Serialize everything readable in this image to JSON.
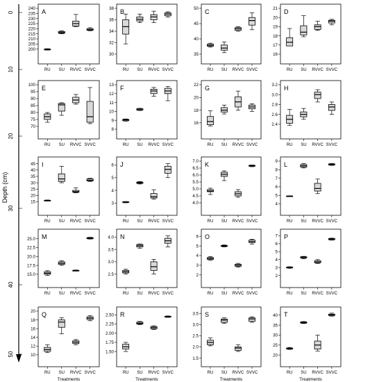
{
  "chart_data": {
    "type": "box",
    "ylabel": "Depth (cm)",
    "depth_axis": {
      "ticks": [
        "0",
        "10",
        "20",
        "30",
        "40",
        "50"
      ]
    },
    "xlabel": "Treatments",
    "categories": [
      "RU",
      "SU",
      "RVVC",
      "SVVC"
    ],
    "box_color": "#d9d9d9",
    "panels": [
      {
        "label": "A",
        "ylim": [
          195,
          240
        ],
        "yticks": [
          "200",
          "205",
          "210",
          "215",
          "220",
          "225",
          "230",
          "235",
          "240"
        ],
        "boxes": [
          {
            "min": 199,
            "q1": 199.2,
            "median": 199.5,
            "q3": 200,
            "max": 200.4
          },
          {
            "min": 215,
            "q1": 215.5,
            "median": 216.3,
            "q3": 217.3,
            "max": 218
          },
          {
            "min": 222,
            "q1": 222.5,
            "median": 225,
            "q3": 227.5,
            "max": 234
          },
          {
            "min": 218,
            "q1": 218.5,
            "median": 219,
            "q3": 220,
            "max": 221
          }
        ]
      },
      {
        "label": "B",
        "ylim": [
          30,
          38
        ],
        "yticks": [
          "30",
          "32",
          "34",
          "36",
          "38"
        ],
        "boxes": [
          {
            "min": 31.8,
            "q1": 33.5,
            "median": 34.8,
            "q3": 36,
            "max": 37
          },
          {
            "min": 35.5,
            "q1": 35.8,
            "median": 36.1,
            "q3": 36.5,
            "max": 37
          },
          {
            "min": 35.5,
            "q1": 36,
            "median": 36.5,
            "q3": 36.9,
            "max": 37.5
          },
          {
            "min": 36.5,
            "q1": 36.7,
            "median": 37,
            "q3": 37.2,
            "max": 37.4
          }
        ]
      },
      {
        "label": "C",
        "ylim": [
          35,
          50
        ],
        "yticks": [
          "35",
          "40",
          "45",
          "50"
        ],
        "boxes": [
          {
            "min": 37.3,
            "q1": 37.6,
            "median": 37.9,
            "q3": 38.3,
            "max": 38.6
          },
          {
            "min": 35.5,
            "q1": 36.3,
            "median": 37,
            "q3": 38,
            "max": 39
          },
          {
            "min": 42.5,
            "q1": 42.8,
            "median": 43.3,
            "q3": 43.7,
            "max": 44
          },
          {
            "min": 43,
            "q1": 44.5,
            "median": 46,
            "q3": 47,
            "max": 48.5
          }
        ]
      },
      {
        "label": "D",
        "ylim": [
          16,
          21
        ],
        "yticks": [
          "16",
          "17",
          "18",
          "19",
          "20",
          "21"
        ],
        "boxes": [
          {
            "min": 16.9,
            "q1": 16.9,
            "median": 17.3,
            "q3": 17.8,
            "max": 18.8
          },
          {
            "min": 17.9,
            "q1": 18.1,
            "median": 18.4,
            "q3": 19.1,
            "max": 20.2
          },
          {
            "min": 18.6,
            "q1": 18.7,
            "median": 19,
            "q3": 19.2,
            "max": 19.6
          },
          {
            "min": 19.2,
            "q1": 19.4,
            "median": 19.6,
            "q3": 19.7,
            "max": 19.8
          }
        ]
      },
      {
        "label": "E",
        "ylim": [
          68,
          100
        ],
        "yticks": [
          "70",
          "75",
          "80",
          "85",
          "90",
          "95",
          "100"
        ],
        "boxes": [
          {
            "min": 73,
            "q1": 75,
            "median": 77,
            "q3": 79,
            "max": 80
          },
          {
            "min": 78,
            "q1": 81,
            "median": 85.5,
            "q3": 86.5,
            "max": 87
          },
          {
            "min": 86,
            "q1": 87,
            "median": 89,
            "q3": 91,
            "max": 93
          },
          {
            "min": 72,
            "q1": 73,
            "median": 77,
            "q3": 88,
            "max": 98
          }
        ]
      },
      {
        "label": "F",
        "ylim": [
          8,
          13
        ],
        "yticks": [
          "8",
          "9",
          "10",
          "11",
          "12",
          "13"
        ],
        "boxes": [
          {
            "min": 8.9,
            "q1": 8.95,
            "median": 9.05,
            "q3": 9.1,
            "max": 9.15
          },
          {
            "min": 10.1,
            "q1": 10.15,
            "median": 10.2,
            "q3": 10.3,
            "max": 10.35
          },
          {
            "min": 11.7,
            "q1": 12,
            "median": 12.3,
            "q3": 12.5,
            "max": 12.7
          },
          {
            "min": 11.2,
            "q1": 12,
            "median": 12.3,
            "q3": 12.6,
            "max": 12.8
          }
        ]
      },
      {
        "label": "G",
        "ylim": [
          15,
          22
        ],
        "yticks": [
          "16",
          "18",
          "20",
          "22"
        ],
        "boxes": [
          {
            "min": 15.5,
            "q1": 15.7,
            "median": 16.2,
            "q3": 17,
            "max": 17.9
          },
          {
            "min": 17.4,
            "q1": 17.7,
            "median": 18,
            "q3": 18.4,
            "max": 18.8
          },
          {
            "min": 18,
            "q1": 18.5,
            "median": 19.3,
            "q3": 20.1,
            "max": 21
          },
          {
            "min": 17.8,
            "q1": 18.2,
            "median": 18.5,
            "q3": 18.8,
            "max": 19
          }
        ]
      },
      {
        "label": "H",
        "ylim": [
          2.3,
          3.2
        ],
        "yticks": [
          "2.4",
          "2.6",
          "2.8",
          "3.0",
          "3.2"
        ],
        "boxes": [
          {
            "min": 2.38,
            "q1": 2.42,
            "median": 2.5,
            "q3": 2.58,
            "max": 2.7
          },
          {
            "min": 2.5,
            "q1": 2.55,
            "median": 2.6,
            "q3": 2.65,
            "max": 2.72
          },
          {
            "min": 2.85,
            "q1": 2.92,
            "median": 3.0,
            "q3": 3.05,
            "max": 3.1
          },
          {
            "min": 2.6,
            "q1": 2.68,
            "median": 2.75,
            "q3": 2.8,
            "max": 2.85
          }
        ]
      },
      {
        "label": "I",
        "ylim": [
          12,
          47
        ],
        "yticks": [
          "15",
          "20",
          "25",
          "30",
          "35",
          "40",
          "45"
        ],
        "boxes": [
          {
            "min": 15.6,
            "q1": 15.8,
            "median": 16,
            "q3": 16.2,
            "max": 16.4
          },
          {
            "min": 30,
            "q1": 31,
            "median": 33,
            "q3": 37,
            "max": 43
          },
          {
            "min": 22,
            "q1": 22.5,
            "median": 23,
            "q3": 24,
            "max": 26
          },
          {
            "min": 31,
            "q1": 31.5,
            "median": 32,
            "q3": 33,
            "max": 33.5
          }
        ]
      },
      {
        "label": "J",
        "ylim": [
          2.8,
          6.3
        ],
        "yticks": [
          "3",
          "4",
          "5",
          "6"
        ],
        "boxes": [
          {
            "min": 3.02,
            "q1": 3.05,
            "median": 3.08,
            "q3": 3.1,
            "max": 3.12
          },
          {
            "min": 4.5,
            "q1": 4.55,
            "median": 4.6,
            "q3": 4.65,
            "max": 4.7
          },
          {
            "min": 3.3,
            "q1": 3.4,
            "median": 3.5,
            "q3": 3.75,
            "max": 4.05
          },
          {
            "min": 5,
            "q1": 5.35,
            "median": 5.65,
            "q3": 5.9,
            "max": 6.1
          }
        ]
      },
      {
        "label": "K",
        "ylim": [
          3.8,
          7.0
        ],
        "yticks": [
          "4.0",
          "4.5",
          "5.0",
          "5.5",
          "6.0",
          "6.5",
          "7.0"
        ],
        "boxes": [
          {
            "min": 4.6,
            "q1": 4.8,
            "median": 4.85,
            "q3": 4.95,
            "max": 5.05
          },
          {
            "min": 5.6,
            "q1": 5.9,
            "median": 6.05,
            "q3": 6.2,
            "max": 6.3
          },
          {
            "min": 4.4,
            "q1": 4.5,
            "median": 4.65,
            "q3": 4.8,
            "max": 4.95
          },
          {
            "min": 6.6,
            "q1": 6.63,
            "median": 6.66,
            "q3": 6.7,
            "max": 6.72
          }
        ]
      },
      {
        "label": "L",
        "ylim": [
          3.8,
          9.0
        ],
        "yticks": [
          "4",
          "5",
          "6",
          "7",
          "8",
          "9"
        ],
        "boxes": [
          {
            "min": 4.85,
            "q1": 4.88,
            "median": 4.9,
            "q3": 4.93,
            "max": 4.95
          },
          {
            "min": 8.2,
            "q1": 8.3,
            "median": 8.45,
            "q3": 8.6,
            "max": 8.7
          },
          {
            "min": 5.2,
            "q1": 5.5,
            "median": 5.8,
            "q3": 6.4,
            "max": 6.9
          },
          {
            "min": 8.5,
            "q1": 8.55,
            "median": 8.62,
            "q3": 8.68,
            "max": 8.72
          }
        ]
      },
      {
        "label": "M",
        "ylim": [
          14,
          26.5
        ],
        "yticks": [
          "15.0",
          "17.5",
          "20.0",
          "22.5",
          "25.0"
        ],
        "boxes": [
          {
            "min": 14.7,
            "q1": 15,
            "median": 15.3,
            "q3": 15.7,
            "max": 16
          },
          {
            "min": 17.5,
            "q1": 17.8,
            "median": 18.1,
            "q3": 18.5,
            "max": 18.8
          },
          {
            "min": 15.9,
            "q1": 16,
            "median": 16.05,
            "q3": 16.1,
            "max": 16.2
          },
          {
            "min": 24.9,
            "q1": 25,
            "median": 25.1,
            "q3": 25.3,
            "max": 25.4
          }
        ]
      },
      {
        "label": "N",
        "ylim": [
          2.35,
          4.15
        ],
        "yticks": [
          "2.5",
          "3.0",
          "3.5",
          "4.0"
        ],
        "boxes": [
          {
            "min": 2.5,
            "q1": 2.55,
            "median": 2.6,
            "q3": 2.65,
            "max": 2.7
          },
          {
            "min": 3.55,
            "q1": 3.6,
            "median": 3.65,
            "q3": 3.7,
            "max": 3.72
          },
          {
            "min": 2.5,
            "q1": 2.65,
            "median": 2.8,
            "q3": 3.0,
            "max": 3.1
          },
          {
            "min": 3.6,
            "q1": 3.75,
            "median": 3.85,
            "q3": 3.95,
            "max": 4.05
          }
        ]
      },
      {
        "label": "O",
        "ylim": [
          1.7,
          6.3
        ],
        "yticks": [
          "2",
          "3",
          "4",
          "5",
          "6"
        ],
        "boxes": [
          {
            "min": 3.5,
            "q1": 3.6,
            "median": 3.7,
            "q3": 3.8,
            "max": 3.9
          },
          {
            "min": 4.9,
            "q1": 4.95,
            "median": 5.0,
            "q3": 5.05,
            "max": 5.1
          },
          {
            "min": 2.8,
            "q1": 2.9,
            "median": 3.0,
            "q3": 3.1,
            "max": 3.2
          },
          {
            "min": 5.2,
            "q1": 5.35,
            "median": 5.45,
            "q3": 5.6,
            "max": 5.7
          }
        ]
      },
      {
        "label": "P",
        "ylim": [
          1.7,
          7.3
        ],
        "yticks": [
          "2",
          "3",
          "4",
          "5",
          "6",
          "7"
        ],
        "boxes": [
          {
            "min": 2.9,
            "q1": 2.95,
            "median": 3.0,
            "q3": 3.05,
            "max": 3.1
          },
          {
            "min": 4.1,
            "q1": 4.2,
            "median": 4.3,
            "q3": 4.35,
            "max": 4.4
          },
          {
            "min": 3.5,
            "q1": 3.6,
            "median": 3.7,
            "q3": 3.85,
            "max": 4.0
          },
          {
            "min": 6.45,
            "q1": 6.5,
            "median": 6.6,
            "q3": 6.65,
            "max": 6.7
          }
        ]
      },
      {
        "label": "Q",
        "ylim": [
          9.5,
          20
        ],
        "yticks": [
          "10",
          "12",
          "14",
          "16",
          "18",
          "20"
        ],
        "boxes": [
          {
            "min": 10.5,
            "q1": 10.8,
            "median": 11.2,
            "q3": 11.7,
            "max": 12.3
          },
          {
            "min": 14.8,
            "q1": 16.3,
            "median": 17.5,
            "q3": 18,
            "max": 18.5
          },
          {
            "min": 12.3,
            "q1": 12.6,
            "median": 12.9,
            "q3": 13.2,
            "max": 13.5
          },
          {
            "min": 17.8,
            "q1": 18.1,
            "median": 18.4,
            "q3": 18.7,
            "max": 19
          }
        ]
      },
      {
        "label": "R",
        "ylim": [
          1.35,
          2.6
        ],
        "yticks": [
          "1.50",
          "1.75",
          "2.00",
          "2.25",
          "2.50"
        ],
        "boxes": [
          {
            "min": 1.5,
            "q1": 1.57,
            "median": 1.63,
            "q3": 1.7,
            "max": 1.75
          },
          {
            "min": 2.23,
            "q1": 2.25,
            "median": 2.27,
            "q3": 2.3,
            "max": 2.32
          },
          {
            "min": 2.1,
            "q1": 2.12,
            "median": 2.15,
            "q3": 2.18,
            "max": 2.2
          },
          {
            "min": 2.43,
            "q1": 2.44,
            "median": 2.45,
            "q3": 2.46,
            "max": 2.47
          }
        ]
      },
      {
        "label": "S",
        "ylim": [
          1.55,
          3.6
        ],
        "yticks": [
          "1.5",
          "2.0",
          "2.5",
          "3.0",
          "3.5"
        ],
        "boxes": [
          {
            "min": 2.05,
            "q1": 2.1,
            "median": 2.2,
            "q3": 2.3,
            "max": 2.4
          },
          {
            "min": 3.05,
            "q1": 3.1,
            "median": 3.2,
            "q3": 3.25,
            "max": 3.3
          },
          {
            "min": 1.8,
            "q1": 1.85,
            "median": 1.95,
            "q3": 2.0,
            "max": 2.1
          },
          {
            "min": 3.1,
            "q1": 3.15,
            "median": 3.25,
            "q3": 3.3,
            "max": 3.35
          }
        ]
      },
      {
        "label": "T",
        "ylim": [
          19,
          42
        ],
        "yticks": [
          "20",
          "25",
          "30",
          "35",
          "40"
        ],
        "boxes": [
          {
            "min": 22.8,
            "q1": 23,
            "median": 23.2,
            "q3": 23.5,
            "max": 23.8
          },
          {
            "min": 35.8,
            "q1": 36,
            "median": 36.3,
            "q3": 36.6,
            "max": 36.8
          },
          {
            "min": 22,
            "q1": 23,
            "median": 25,
            "q3": 27,
            "max": 30
          },
          {
            "min": 39.5,
            "q1": 39.8,
            "median": 40.2,
            "q3": 40.5,
            "max": 41
          }
        ]
      }
    ]
  }
}
